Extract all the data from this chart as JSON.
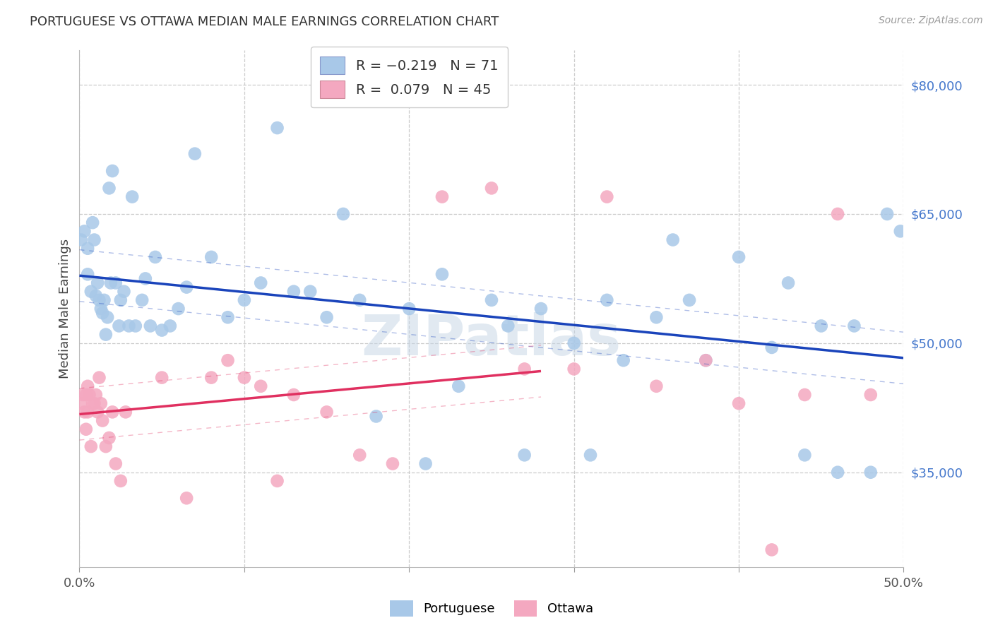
{
  "title": "PORTUGUESE VS OTTAWA MEDIAN MALE EARNINGS CORRELATION CHART",
  "source": "Source: ZipAtlas.com",
  "ylabel": "Median Male Earnings",
  "xlim": [
    0.0,
    0.5
  ],
  "ylim": [
    24000,
    84000
  ],
  "watermark": "ZIPatlas",
  "blue_color": "#a8c8e8",
  "pink_color": "#f4a8c0",
  "blue_line_color": "#1a44bb",
  "pink_line_color": "#e03060",
  "ytick_values": [
    35000,
    50000,
    65000,
    80000
  ],
  "ytick_labels": [
    "$35,000",
    "$50,000",
    "$65,000",
    "$80,000"
  ],
  "legend1_r1": "R = −0.219",
  "legend1_n1": "N = 71",
  "legend1_r2": "R =  0.079",
  "legend1_n2": "N = 45",
  "legend2_label1": "Portuguese",
  "legend2_label2": "Ottawa",
  "blue_x": [
    0.001,
    0.003,
    0.005,
    0.005,
    0.007,
    0.008,
    0.009,
    0.01,
    0.011,
    0.012,
    0.013,
    0.014,
    0.015,
    0.016,
    0.017,
    0.018,
    0.019,
    0.02,
    0.022,
    0.024,
    0.025,
    0.027,
    0.03,
    0.032,
    0.034,
    0.038,
    0.04,
    0.043,
    0.046,
    0.05,
    0.055,
    0.06,
    0.065,
    0.07,
    0.08,
    0.09,
    0.1,
    0.11,
    0.12,
    0.13,
    0.14,
    0.15,
    0.16,
    0.17,
    0.18,
    0.2,
    0.21,
    0.22,
    0.23,
    0.25,
    0.26,
    0.27,
    0.28,
    0.3,
    0.31,
    0.32,
    0.33,
    0.35,
    0.36,
    0.37,
    0.38,
    0.4,
    0.42,
    0.43,
    0.44,
    0.45,
    0.46,
    0.47,
    0.48,
    0.49,
    0.498
  ],
  "blue_y": [
    62000,
    63000,
    61000,
    58000,
    56000,
    64000,
    62000,
    55500,
    57000,
    55000,
    54000,
    53500,
    55000,
    51000,
    53000,
    68000,
    57000,
    70000,
    57000,
    52000,
    55000,
    56000,
    52000,
    67000,
    52000,
    55000,
    57500,
    52000,
    60000,
    51500,
    52000,
    54000,
    56500,
    72000,
    60000,
    53000,
    55000,
    57000,
    75000,
    56000,
    56000,
    53000,
    65000,
    55000,
    41500,
    54000,
    36000,
    58000,
    45000,
    55000,
    52000,
    37000,
    54000,
    50000,
    37000,
    55000,
    48000,
    53000,
    62000,
    55000,
    48000,
    60000,
    49500,
    57000,
    37000,
    52000,
    35000,
    52000,
    35000,
    65000,
    63000
  ],
  "pink_x": [
    0.001,
    0.002,
    0.003,
    0.004,
    0.004,
    0.005,
    0.005,
    0.006,
    0.007,
    0.008,
    0.009,
    0.01,
    0.011,
    0.012,
    0.013,
    0.014,
    0.016,
    0.018,
    0.02,
    0.022,
    0.025,
    0.028,
    0.05,
    0.065,
    0.08,
    0.09,
    0.1,
    0.11,
    0.13,
    0.15,
    0.17,
    0.19,
    0.22,
    0.25,
    0.27,
    0.3,
    0.32,
    0.35,
    0.38,
    0.4,
    0.42,
    0.44,
    0.46,
    0.48,
    0.12
  ],
  "pink_y": [
    43000,
    44000,
    42000,
    44000,
    40000,
    45000,
    42000,
    44000,
    38000,
    43000,
    43000,
    44000,
    42000,
    46000,
    43000,
    41000,
    38000,
    39000,
    42000,
    36000,
    34000,
    42000,
    46000,
    32000,
    46000,
    48000,
    46000,
    45000,
    44000,
    42000,
    37000,
    36000,
    67000,
    68000,
    47000,
    47000,
    67000,
    45000,
    48000,
    43000,
    26000,
    44000,
    65000,
    44000,
    34000
  ]
}
